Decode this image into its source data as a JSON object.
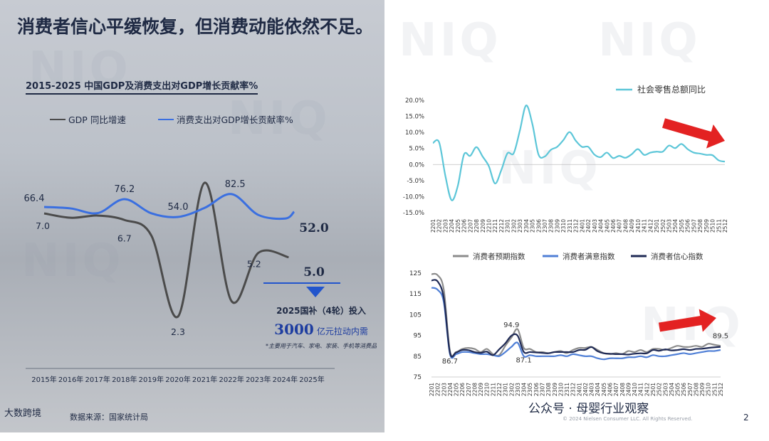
{
  "page": {
    "title": "消费者信心平缓恢复，但消费动能依然不足。",
    "watermark": "NIQ",
    "footer_brand": "大数跨境",
    "source": "数据来源：国家统计局",
    "wechat": "公众号 · 母婴行业观察",
    "copyright": "© 2024 Nielsen Consumer LLC. All Rights Reserved.",
    "page_number": "2"
  },
  "colors": {
    "gdp": "#4b4b4b",
    "consumption": "#3a6fe0",
    "retail": "#5cc6d8",
    "expectation": "#8c8c8c",
    "satisfaction": "#4f7fd6",
    "confidence": "#1f2a55",
    "arrow_red": "#e32222",
    "title_navy": "#1f2a44"
  },
  "annotation": {
    "line1": "2025国补（4轮）投入",
    "amount": "3000",
    "line2": "亿元拉动内需",
    "note": "*主要用于汽车、家电、家装、手机等消费品"
  },
  "chart_data": [
    {
      "id": "gdp_chart",
      "type": "line",
      "title": "2015-2025 中国GDP及消费支出对GDP增长贡献率%",
      "categories": [
        "2015年",
        "2016年",
        "2017年",
        "2018年",
        "2019年",
        "2020年",
        "2021年",
        "2022年",
        "2023年",
        "2024年",
        "2025年"
      ],
      "series": [
        {
          "name": "GDP 同比增速",
          "values": [
            7.0,
            6.8,
            6.9,
            6.7,
            6.0,
            2.3,
            8.4,
            3.0,
            5.2,
            5.0,
            5.0
          ]
        },
        {
          "name": "消费支出对GDP增长贡献率%",
          "values": [
            66.4,
            64.6,
            58.8,
            76.2,
            58.6,
            54.0,
            65.4,
            82.5,
            56.5,
            52.0,
            52.0
          ]
        }
      ],
      "data_labels": {
        "consumption": [
          {
            "index": 0,
            "text": "66.4"
          },
          {
            "index": 3,
            "text": "76.2"
          },
          {
            "index": 5,
            "text": "54.0"
          },
          {
            "index": 7,
            "text": "82.5"
          },
          {
            "index": 9,
            "text": "52.0"
          }
        ],
        "gdp": [
          {
            "index": 0,
            "text": "7.0"
          },
          {
            "index": 3,
            "text": "6.7"
          },
          {
            "index": 5,
            "text": "2.3"
          },
          {
            "index": 8,
            "text": "5.2"
          },
          {
            "index": 9,
            "text": "5.0"
          }
        ]
      }
    },
    {
      "id": "retail_chart",
      "type": "line",
      "legend": [
        "社会零售总额同比"
      ],
      "ylim": [
        -15,
        20
      ],
      "yticks": [
        "20.0%",
        "15.0%",
        "10.0%",
        "5.0%",
        "0.0%",
        "-5.0%",
        "-10.0%",
        "-15.0%"
      ],
      "x": [
        "2201",
        "2202",
        "2203",
        "2204",
        "2205",
        "2206",
        "2207",
        "2208",
        "2209",
        "2210",
        "2211",
        "2212",
        "2301",
        "2302",
        "2303",
        "2304",
        "2305",
        "2306",
        "2307",
        "2308",
        "2309",
        "2310",
        "2311",
        "2312",
        "2401",
        "2402",
        "2403",
        "2404",
        "2405",
        "2406",
        "2407",
        "2408",
        "2409",
        "2410",
        "2411",
        "2412",
        "2501",
        "2502",
        "2503",
        "2504",
        "2505",
        "2506",
        "2507",
        "2508",
        "2509",
        "2510",
        "2511",
        "2512"
      ],
      "series": [
        {
          "name": "社会零售总额同比",
          "values": [
            6.7,
            6.9,
            -3.5,
            -11.1,
            -6.7,
            3.1,
            2.7,
            5.4,
            2.5,
            -0.5,
            -5.9,
            -1.8,
            3.5,
            3.5,
            10.6,
            18.4,
            12.7,
            3.1,
            2.5,
            4.6,
            5.5,
            7.6,
            10.1,
            7.4,
            5.5,
            5.5,
            3.1,
            2.3,
            3.7,
            2.0,
            2.7,
            2.1,
            3.2,
            4.8,
            3.0,
            3.7,
            4.0,
            4.0,
            5.9,
            5.1,
            6.4,
            4.8,
            3.7,
            3.4,
            3.0,
            2.9,
            1.3,
            0.9
          ]
        }
      ]
    },
    {
      "id": "confidence_chart",
      "type": "line",
      "ylim": [
        75,
        125
      ],
      "yticks": [
        "125",
        "115",
        "105",
        "95",
        "85",
        "75"
      ],
      "x": [
        "2201",
        "2202",
        "2203",
        "2204",
        "2205",
        "2206",
        "2207",
        "2208",
        "2209",
        "2210",
        "2211",
        "2212",
        "2301",
        "2302",
        "2303",
        "2304",
        "2305",
        "2306",
        "2307",
        "2308",
        "2309",
        "2310",
        "2311",
        "2312",
        "2401",
        "2402",
        "2403",
        "2404",
        "2405",
        "2406",
        "2407",
        "2408",
        "2409",
        "2410",
        "2411",
        "2412",
        "2501",
        "2502",
        "2503",
        "2504",
        "2505",
        "2506",
        "2507",
        "2508",
        "2509",
        "2510",
        "2511",
        "2512"
      ],
      "series": [
        {
          "name": "消费者预期指数",
          "values": [
            124.5,
            124.0,
            117.0,
            87.5,
            87.0,
            88.5,
            89.0,
            88.5,
            87.0,
            88.5,
            86.0,
            85.5,
            90.0,
            94.0,
            98.0,
            89.0,
            88.5,
            87.0,
            87.0,
            86.5,
            87.0,
            87.5,
            86.5,
            88.0,
            89.0,
            89.0,
            89.5,
            88.0,
            86.5,
            86.0,
            86.5,
            86.0,
            87.5,
            87.0,
            88.0,
            87.0,
            88.5,
            88.5,
            88.0,
            89.0,
            90.0,
            89.5,
            89.5,
            90.0,
            89.5,
            91.0,
            90.5,
            90.0
          ]
        },
        {
          "name": "消费者满意指数",
          "values": [
            118.0,
            117.0,
            111.0,
            86.0,
            86.0,
            87.0,
            87.0,
            86.5,
            86.0,
            86.0,
            85.5,
            85.0,
            87.0,
            89.5,
            91.5,
            85.0,
            85.5,
            85.0,
            85.0,
            85.0,
            85.0,
            85.5,
            85.0,
            86.0,
            85.5,
            85.0,
            85.0,
            84.0,
            83.5,
            84.0,
            84.0,
            84.0,
            84.5,
            84.5,
            85.0,
            84.5,
            85.5,
            85.0,
            85.0,
            85.5,
            86.0,
            86.5,
            86.0,
            86.5,
            87.0,
            87.5,
            87.5,
            88.0
          ]
        },
        {
          "name": "消费者信心指数",
          "values": [
            121.5,
            121.0,
            113.0,
            86.7,
            86.8,
            88.0,
            87.9,
            87.0,
            86.6,
            87.2,
            85.5,
            88.3,
            91.2,
            94.9,
            94.9,
            87.1,
            87.0,
            86.8,
            86.6,
            86.4,
            87.0,
            87.0,
            87.0,
            87.0,
            88.0,
            88.1,
            89.4,
            87.4,
            86.4,
            86.2,
            86.0,
            86.0,
            85.8,
            86.2,
            86.4,
            86.4,
            88.0,
            87.6,
            88.3,
            87.8,
            88.0,
            88.4,
            88.0,
            88.5,
            88.6,
            89.0,
            89.3,
            89.5
          ]
        }
      ],
      "data_labels": [
        {
          "series": 2,
          "index": 3,
          "text": "86.7"
        },
        {
          "series": 2,
          "index": 13,
          "text": "94.9"
        },
        {
          "series": 2,
          "index": 15,
          "text": "87.1"
        },
        {
          "series": 2,
          "index": 47,
          "text": "89.5"
        }
      ]
    }
  ]
}
